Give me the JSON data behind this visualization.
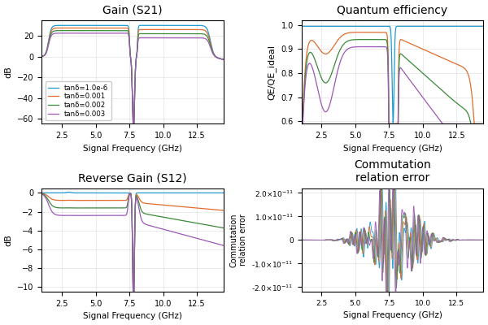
{
  "title_gain": "Gain (S21)",
  "title_qe": "Quantum efficiency",
  "title_rev": "Reverse Gain (S12)",
  "title_comm": "Commutation\nrelation error",
  "xlabel": "Signal Frequency (GHz)",
  "ylabel_gain": "dB",
  "ylabel_qe": "QE/QE_ideal",
  "ylabel_rev": "dB",
  "ylabel_comm": "Commutation\nrelation error",
  "legend_labels": [
    "tanδ=1.0e-6",
    "tanδ=0.001",
    "tanδ=0.002",
    "tanδ=0.003"
  ],
  "colors": [
    "#1f9bcf",
    "#e06c2d",
    "#3a8a3a",
    "#9b59b6"
  ],
  "freq_min": 1.0,
  "freq_max": 14.5,
  "pump_freq": 7.8,
  "gain_ylim": [
    -65,
    35
  ],
  "qe_ylim": [
    0.59,
    1.02
  ],
  "rev_ylim": [
    -10.5,
    0.5
  ],
  "comm_scale": 2.2e-11
}
